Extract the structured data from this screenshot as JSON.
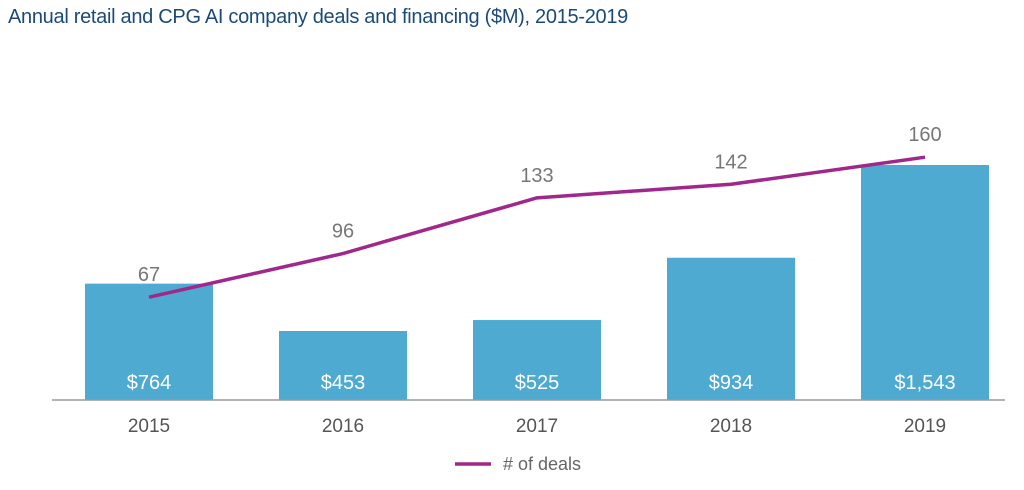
{
  "chart_data": {
    "type": "bar+line",
    "title": "Annual retail and CPG AI company deals and financing ($M), 2015-2019",
    "categories": [
      "2015",
      "2016",
      "2017",
      "2018",
      "2019"
    ],
    "bars": {
      "values": [
        764,
        453,
        525,
        934,
        1543
      ],
      "labels": [
        "$764",
        "$453",
        "$525",
        "$934",
        "$1,543"
      ],
      "color": "#4eaad0"
    },
    "line": {
      "name": "# of deals",
      "values": [
        67,
        96,
        133,
        142,
        160
      ],
      "color": "#a0288c"
    },
    "legend_position": "bottom",
    "grid": false
  }
}
